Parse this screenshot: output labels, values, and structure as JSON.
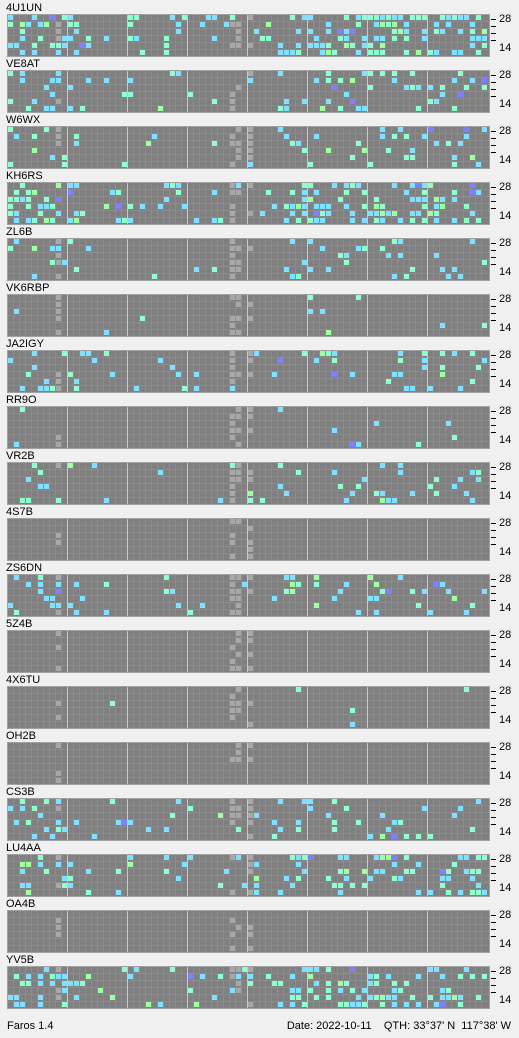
{
  "app": {
    "name": "Faros 1.4"
  },
  "status_bar": {
    "date": "Date: 2022-10-11",
    "qth": "QTH: 33°37' N  117°38' W"
  },
  "axis": {
    "top_label": "28",
    "bottom_label": "14"
  },
  "colors": {
    "background": "#f0f0f0",
    "grid_empty": "#808080",
    "gridline": "#8c8c8c",
    "hour_divider": "#c8c8c8",
    "sunrise_band": "#a8a8a8",
    "weak": "#80e0ff",
    "medium": "#90ffd0",
    "strong": "#a0ffa0",
    "very_strong": "#8080ff"
  },
  "stations": [
    {
      "call": "4U1UN"
    },
    {
      "call": "VE8AT"
    },
    {
      "call": "W6WX"
    },
    {
      "call": "KH6RS"
    },
    {
      "call": "ZL6B"
    },
    {
      "call": "VK6RBP"
    },
    {
      "call": "JA2IGY"
    },
    {
      "call": "RR9O"
    },
    {
      "call": "VR2B"
    },
    {
      "call": "4S7B"
    },
    {
      "call": "ZS6DN"
    },
    {
      "call": "5Z4B"
    },
    {
      "call": "4X6TU"
    },
    {
      "call": "OH2B"
    },
    {
      "call": "CS3B"
    },
    {
      "call": "LU4AA"
    },
    {
      "call": "OA4B"
    },
    {
      "call": "YV5B"
    }
  ]
}
